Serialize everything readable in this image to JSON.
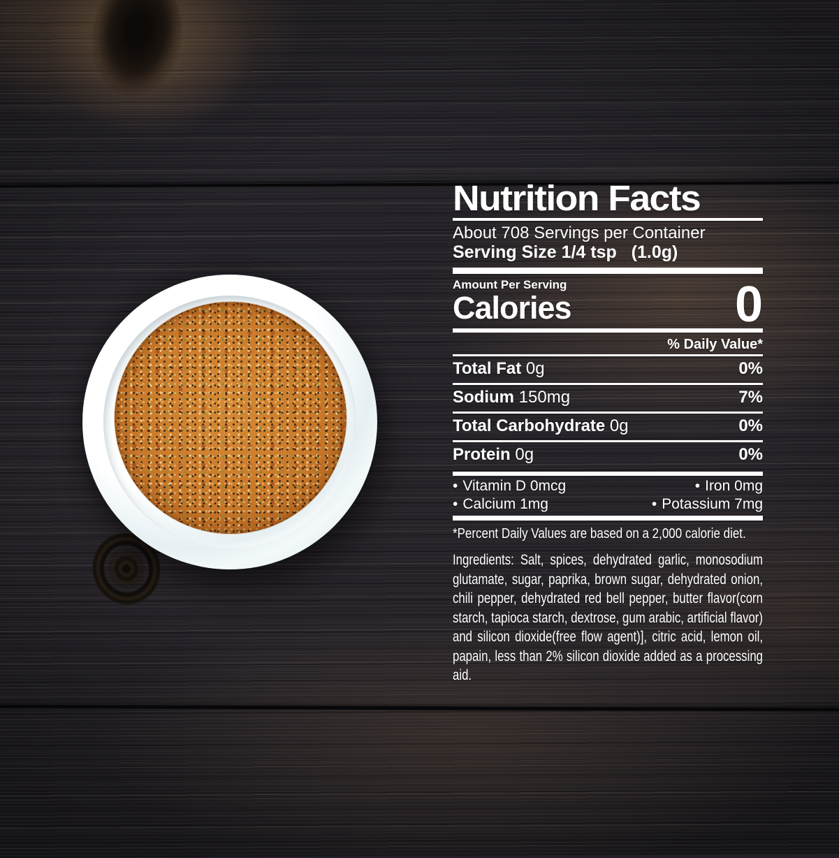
{
  "label": {
    "title": "Nutrition Facts",
    "servings_per_container": "About 708 Servings per Container",
    "serving_size": "Serving Size 1/4 tsp   (1.0g)",
    "amount_per_serving": "Amount Per Serving",
    "calories_label": "Calories",
    "calories_value": "0",
    "daily_value_header": "% Daily Value*",
    "bullet": "•",
    "nutrients": [
      {
        "name": "Total Fat",
        "amount": "0g",
        "daily_value": "0%"
      },
      {
        "name": "Sodium",
        "amount": "150mg",
        "daily_value": "7%"
      },
      {
        "name": "Total Carbohydrate",
        "amount": "0g",
        "daily_value": "0%"
      },
      {
        "name": "Protein",
        "amount": "0g",
        "daily_value": "0%"
      }
    ],
    "micronutrients": [
      {
        "name": "Vitamin D",
        "amount": "0mcg"
      },
      {
        "name": "Iron",
        "amount": "0mg"
      },
      {
        "name": "Calcium",
        "amount": "1mg"
      },
      {
        "name": "Potassium",
        "amount": "7mg"
      }
    ],
    "footnote": "*Percent Daily Values are based on a 2,000 calorie diet.",
    "ingredients": "Ingredients: Salt, spices, dehydrated garlic, monosodium glutamate, sugar, paprika, brown sugar, dehydrated onion, chili pepper, dehydrated red bell pepper,  butter flavor(corn starch, tapioca starch, dextrose, gum arabic, artificial flavor) and silicon dioxide(free flow agent)], citric acid, lemon oil, papain, less than 2% silicon dioxide added as a processing aid."
  },
  "scene": {
    "subject": "white ceramic bowl of orange seasoning blend on dark wood planks",
    "colors": {
      "wood_base": "#232127",
      "wood_highlight": "#7d6042",
      "seasoning_orange": "#c97b2a",
      "bowl_white": "#f2f8f9",
      "label_text": "#ffffff"
    }
  }
}
